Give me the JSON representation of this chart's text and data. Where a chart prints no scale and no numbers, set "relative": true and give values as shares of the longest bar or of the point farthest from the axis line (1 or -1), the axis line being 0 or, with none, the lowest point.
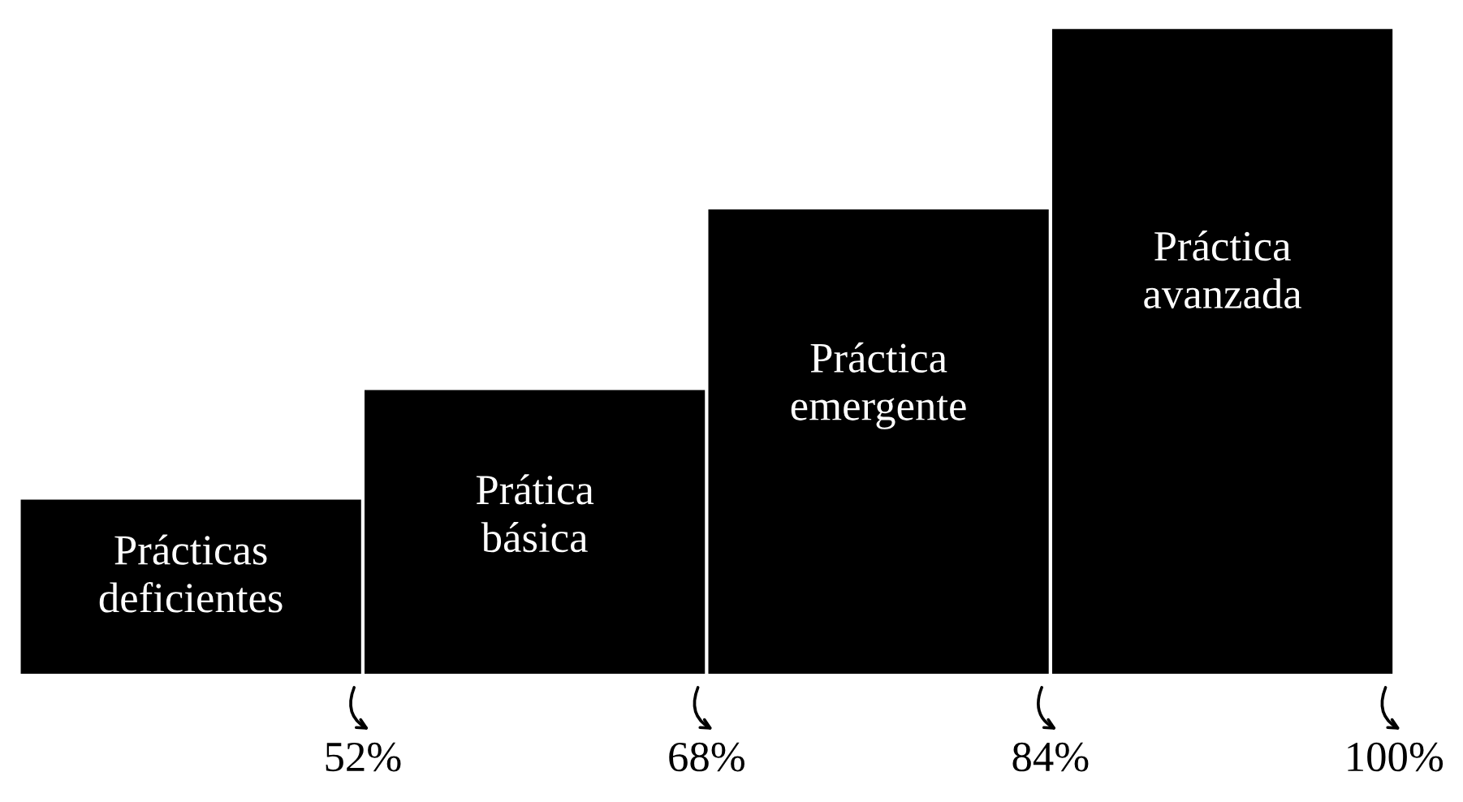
{
  "chart_data": {
    "type": "bar",
    "relative": true,
    "categories": [
      "Prácticas\ndeficientes",
      "Prática\nbásica",
      "Práctica\nemergente",
      "Práctica\navanzada"
    ],
    "values": [
      0.27,
      0.44,
      0.72,
      1
    ],
    "color": "#000000",
    "annotations": [
      "52%",
      "68%",
      "84%",
      "100%"
    ]
  }
}
